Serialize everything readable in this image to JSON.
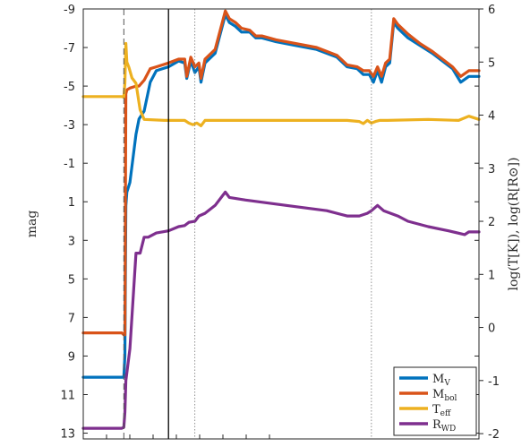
{
  "chart_data": {
    "type": "line",
    "ylabel_left": "mag",
    "ylabel_right": "log(T[K]), log(R[R⊙])",
    "ylim_left": [
      13.3,
      -9
    ],
    "ylim_right": [
      -2.1,
      6
    ],
    "left_ticks": [
      "-9",
      "-7",
      "-5",
      "-3",
      "-1",
      "1",
      "3",
      "5",
      "7",
      "9",
      "11",
      "13"
    ],
    "right_ticks": [
      "6",
      "5",
      "4",
      "3",
      "2",
      "1",
      "0",
      "-1",
      "-2"
    ],
    "legend_position": "bottom-right",
    "grid": false,
    "series": [
      {
        "key": "mv",
        "name": "M",
        "sub": "V",
        "axis": "left",
        "color": "#0072bd",
        "x": [
          0.0,
          0.19,
          0.2,
          0.205,
          0.21,
          0.215,
          0.23,
          0.26,
          0.275,
          0.3,
          0.33,
          0.36,
          0.42,
          0.47,
          0.5,
          0.51,
          0.53,
          0.55,
          0.57,
          0.58,
          0.6,
          0.65,
          0.7,
          0.72,
          0.75,
          0.78,
          0.82,
          0.85,
          0.88,
          0.95,
          1.05,
          1.15,
          1.25,
          1.3,
          1.35,
          1.38,
          1.41,
          1.43,
          1.45,
          1.47,
          1.49,
          1.51,
          1.53,
          1.55,
          1.6,
          1.66,
          1.72,
          1.77,
          1.82,
          1.86,
          1.9,
          1.95
        ],
        "y": [
          10.1,
          10.1,
          10.1,
          9.0,
          1.2,
          0.5,
          0.0,
          -2.5,
          -3.3,
          -3.7,
          -5.2,
          -5.8,
          -6.0,
          -6.3,
          -6.2,
          -5.4,
          -6.3,
          -5.7,
          -6.0,
          -5.2,
          -6.2,
          -6.7,
          -8.7,
          -8.3,
          -8.1,
          -7.8,
          -7.8,
          -7.5,
          -7.5,
          -7.3,
          -7.1,
          -6.9,
          -6.5,
          -6.0,
          -5.9,
          -5.6,
          -5.6,
          -5.2,
          -5.8,
          -5.2,
          -6.0,
          -6.2,
          -8.3,
          -8.0,
          -7.5,
          -7.1,
          -6.7,
          -6.3,
          -5.9,
          -5.2,
          -5.5,
          -5.5
        ]
      },
      {
        "key": "mbol",
        "name": "M",
        "sub": "bol",
        "axis": "left",
        "color": "#d95319",
        "x": [
          0.0,
          0.19,
          0.2,
          0.205,
          0.21,
          0.215,
          0.23,
          0.26,
          0.275,
          0.3,
          0.33,
          0.36,
          0.42,
          0.47,
          0.5,
          0.51,
          0.53,
          0.55,
          0.57,
          0.58,
          0.6,
          0.65,
          0.7,
          0.72,
          0.75,
          0.78,
          0.82,
          0.85,
          0.88,
          0.95,
          1.05,
          1.15,
          1.25,
          1.3,
          1.35,
          1.38,
          1.41,
          1.43,
          1.45,
          1.47,
          1.49,
          1.51,
          1.53,
          1.55,
          1.6,
          1.66,
          1.72,
          1.77,
          1.82,
          1.86,
          1.9,
          1.95
        ],
        "y": [
          7.8,
          7.8,
          7.9,
          7.9,
          -4.6,
          -4.8,
          -4.9,
          -5.0,
          -5.0,
          -5.3,
          -5.9,
          -6.0,
          -6.2,
          -6.4,
          -6.4,
          -5.5,
          -6.5,
          -6.0,
          -6.2,
          -5.4,
          -6.4,
          -6.9,
          -8.9,
          -8.5,
          -8.3,
          -8.0,
          -7.9,
          -7.6,
          -7.6,
          -7.4,
          -7.2,
          -7.0,
          -6.6,
          -6.1,
          -6.0,
          -5.8,
          -5.8,
          -5.5,
          -6.0,
          -5.5,
          -6.2,
          -6.4,
          -8.5,
          -8.2,
          -7.7,
          -7.2,
          -6.8,
          -6.4,
          -6.0,
          -5.5,
          -5.8,
          -5.8
        ]
      },
      {
        "key": "teff",
        "name": "T",
        "sub": "eff",
        "axis": "right",
        "color": "#edb120",
        "x": [
          0.0,
          0.19,
          0.2,
          0.205,
          0.21,
          0.215,
          0.225,
          0.24,
          0.26,
          0.28,
          0.3,
          0.4,
          0.5,
          0.52,
          0.54,
          0.56,
          0.58,
          0.6,
          0.7,
          0.9,
          1.1,
          1.3,
          1.36,
          1.38,
          1.4,
          1.42,
          1.44,
          1.46,
          1.5,
          1.7,
          1.85,
          1.9,
          1.95
        ],
        "y": [
          4.35,
          4.35,
          4.34,
          4.6,
          5.35,
          5.0,
          4.9,
          4.7,
          4.6,
          4.1,
          3.92,
          3.9,
          3.9,
          3.85,
          3.82,
          3.85,
          3.8,
          3.9,
          3.9,
          3.9,
          3.9,
          3.9,
          3.88,
          3.84,
          3.9,
          3.85,
          3.88,
          3.9,
          3.9,
          3.92,
          3.9,
          3.98,
          3.92
        ]
      },
      {
        "key": "rwd",
        "name": "R",
        "sub": "WD",
        "axis": "right",
        "color": "#7e2f8e",
        "x": [
          0.0,
          0.19,
          0.2,
          0.205,
          0.21,
          0.23,
          0.26,
          0.28,
          0.3,
          0.32,
          0.36,
          0.42,
          0.47,
          0.5,
          0.52,
          0.55,
          0.57,
          0.6,
          0.65,
          0.7,
          0.72,
          0.8,
          1.0,
          1.2,
          1.3,
          1.36,
          1.4,
          1.42,
          1.45,
          1.48,
          1.55,
          1.6,
          1.7,
          1.8,
          1.88,
          1.9,
          1.95
        ],
        "y": [
          -1.9,
          -1.9,
          -1.88,
          -1.6,
          -1.0,
          -0.4,
          1.4,
          1.4,
          1.7,
          1.7,
          1.78,
          1.82,
          1.9,
          1.92,
          1.98,
          2.0,
          2.1,
          2.15,
          2.3,
          2.55,
          2.45,
          2.4,
          2.3,
          2.2,
          2.1,
          2.1,
          2.15,
          2.2,
          2.3,
          2.2,
          2.1,
          2.0,
          1.9,
          1.82,
          1.75,
          1.8,
          1.8
        ]
      }
    ],
    "markers": [
      {
        "x": 0.2,
        "style": "dashed"
      },
      {
        "x": 0.42,
        "style": "solid"
      },
      {
        "x": 0.55,
        "style": "dotted"
      },
      {
        "x": 1.42,
        "style": "dotted"
      }
    ]
  }
}
